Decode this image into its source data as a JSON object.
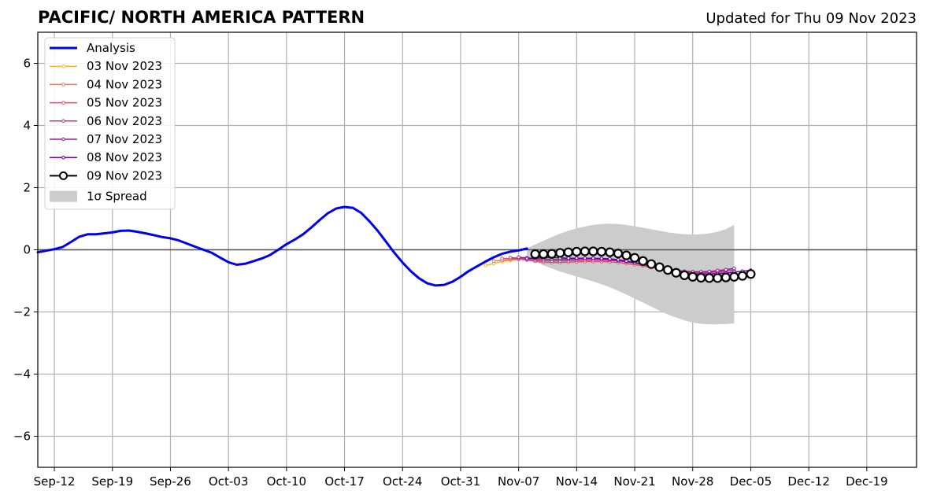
{
  "header": {
    "title": "PACIFIC/ NORTH AMERICA PATTERN",
    "updated": "Updated for Thu 09 Nov 2023"
  },
  "chart_data": {
    "type": "line",
    "title": "PACIFIC/ NORTH AMERICA PATTERN",
    "subtitle": "Updated for Thu 09 Nov 2023",
    "xlabel": "",
    "ylabel": "",
    "x_range": [
      "2023-09-10",
      "2023-12-25"
    ],
    "ylim": [
      -7,
      7
    ],
    "grid": true,
    "legend_position": "top-left",
    "x_ticks": [
      "Sep-12",
      "Sep-19",
      "Sep-26",
      "Oct-03",
      "Oct-10",
      "Oct-17",
      "Oct-24",
      "Oct-31",
      "Nov-07",
      "Nov-14",
      "Nov-21",
      "Nov-28",
      "Dec-05",
      "Dec-12",
      "Dec-19"
    ],
    "x_tick_dates": [
      "2023-09-12",
      "2023-09-19",
      "2023-09-26",
      "2023-10-03",
      "2023-10-10",
      "2023-10-17",
      "2023-10-24",
      "2023-10-31",
      "2023-11-07",
      "2023-11-14",
      "2023-11-21",
      "2023-11-28",
      "2023-12-05",
      "2023-12-12",
      "2023-12-19"
    ],
    "y_ticks": [
      6,
      4,
      2,
      0,
      -2,
      -4,
      -6
    ],
    "y_tick_labels": [
      "6",
      "4",
      "2",
      "0",
      "−2",
      "−4",
      "−6"
    ],
    "analysis": {
      "name": "Analysis",
      "color": "#0000ee",
      "start_date": "2023-09-10",
      "values": [
        -0.08,
        -0.03,
        0.02,
        0.09,
        0.25,
        0.42,
        0.5,
        0.5,
        0.53,
        0.56,
        0.61,
        0.62,
        0.58,
        0.53,
        0.47,
        0.41,
        0.37,
        0.3,
        0.2,
        0.1,
        0.0,
        -0.1,
        -0.25,
        -0.4,
        -0.48,
        -0.45,
        -0.37,
        -0.28,
        -0.17,
        0.0,
        0.18,
        0.33,
        0.5,
        0.72,
        0.96,
        1.18,
        1.33,
        1.38,
        1.35,
        1.19,
        0.92,
        0.61,
        0.26,
        -0.09,
        -0.41,
        -0.69,
        -0.92,
        -1.08,
        -1.15,
        -1.13,
        -1.03,
        -0.87,
        -0.68,
        -0.53,
        -0.38,
        -0.24,
        -0.13,
        -0.06,
        -0.02,
        0.04
      ]
    },
    "spread": {
      "name": "1σ Spread",
      "color": "#cccccc",
      "start_date": "2023-11-08",
      "upper": [
        0.05,
        0.17,
        0.29,
        0.41,
        0.52,
        0.61,
        0.69,
        0.75,
        0.8,
        0.83,
        0.84,
        0.83,
        0.8,
        0.76,
        0.71,
        0.66,
        0.61,
        0.56,
        0.53,
        0.5,
        0.49,
        0.5,
        0.53,
        0.58,
        0.66,
        0.8
      ],
      "lower": [
        -0.2,
        -0.38,
        -0.5,
        -0.6,
        -0.7,
        -0.78,
        -0.86,
        -0.94,
        -1.02,
        -1.11,
        -1.21,
        -1.32,
        -1.44,
        -1.57,
        -1.7,
        -1.83,
        -1.96,
        -2.08,
        -2.18,
        -2.27,
        -2.34,
        -2.38,
        -2.4,
        -2.4,
        -2.39,
        -2.37
      ]
    },
    "series": [
      {
        "name": "03 Nov 2023",
        "color": "#fdb42f",
        "start_date": "2023-11-03",
        "values": [
          -0.5,
          -0.44,
          -0.38,
          -0.34,
          -0.31
        ]
      },
      {
        "name": "04 Nov 2023",
        "color": "#ed7953",
        "start_date": "2023-11-04",
        "values": [
          -0.36,
          -0.34,
          -0.32,
          -0.3,
          -0.3,
          -0.31
        ]
      },
      {
        "name": "05 Nov 2023",
        "color": "#d8576b",
        "start_date": "2023-11-05",
        "values": [
          -0.28,
          -0.28,
          -0.3,
          -0.33,
          -0.37,
          -0.4,
          -0.41,
          -0.41,
          -0.4,
          -0.39,
          -0.38,
          -0.38,
          -0.38,
          -0.39,
          -0.41,
          -0.44,
          -0.48,
          -0.52,
          -0.56,
          -0.6,
          -0.64,
          -0.68,
          -0.71,
          -0.73,
          -0.74,
          -0.74,
          -0.73,
          -0.71
        ]
      },
      {
        "name": "06 Nov 2023",
        "color": "#bd3786",
        "start_date": "2023-11-06",
        "values": [
          -0.25,
          -0.27,
          -0.3,
          -0.33,
          -0.35,
          -0.36,
          -0.36,
          -0.35,
          -0.34,
          -0.33,
          -0.33,
          -0.33,
          -0.34,
          -0.36,
          -0.39,
          -0.43,
          -0.47,
          -0.52,
          -0.57,
          -0.62,
          -0.66,
          -0.69,
          -0.71,
          -0.72,
          -0.72,
          -0.7,
          -0.68,
          -0.65
        ]
      },
      {
        "name": "07 Nov 2023",
        "color": "#9c179e",
        "start_date": "2023-11-07",
        "values": [
          -0.24,
          -0.26,
          -0.28,
          -0.3,
          -0.31,
          -0.31,
          -0.3,
          -0.29,
          -0.28,
          -0.28,
          -0.29,
          -0.31,
          -0.34,
          -0.38,
          -0.42,
          -0.47,
          -0.52,
          -0.57,
          -0.62,
          -0.66,
          -0.69,
          -0.71,
          -0.71,
          -0.7,
          -0.67,
          -0.64,
          -0.6
        ]
      },
      {
        "name": "08 Nov 2023",
        "color": "#6a00a8",
        "start_date": "2023-11-08",
        "values": [
          -0.28,
          -0.26,
          -0.25,
          -0.25,
          -0.26,
          -0.27,
          -0.27,
          -0.27,
          -0.27,
          -0.28,
          -0.29,
          -0.32,
          -0.36,
          -0.41,
          -0.47,
          -0.53,
          -0.59,
          -0.65,
          -0.7,
          -0.74,
          -0.77,
          -0.78,
          -0.78,
          -0.77,
          -0.75,
          -0.72,
          -0.69,
          -0.66
        ]
      },
      {
        "name": "09 Nov 2023",
        "color": "#000000",
        "start_date": "2023-11-09",
        "values": [
          -0.14,
          -0.14,
          -0.13,
          -0.1,
          -0.08,
          -0.06,
          -0.05,
          -0.05,
          -0.06,
          -0.08,
          -0.12,
          -0.18,
          -0.26,
          -0.36,
          -0.46,
          -0.56,
          -0.65,
          -0.74,
          -0.82,
          -0.87,
          -0.9,
          -0.91,
          -0.91,
          -0.89,
          -0.87,
          -0.84,
          -0.78
        ]
      }
    ],
    "legend": [
      "Analysis",
      "03 Nov 2023",
      "04 Nov 2023",
      "05 Nov 2023",
      "06 Nov 2023",
      "07 Nov 2023",
      "08 Nov 2023",
      "09 Nov 2023",
      "1σ Spread"
    ]
  }
}
